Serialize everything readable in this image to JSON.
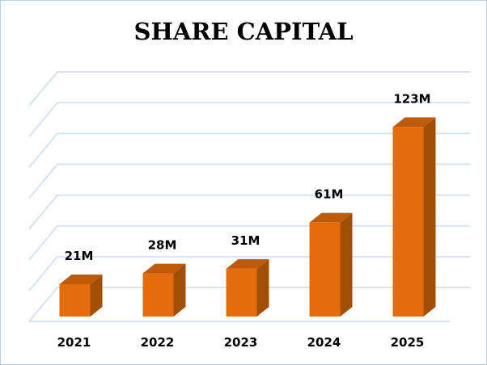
{
  "chart_data": {
    "type": "bar",
    "title": "SHARE CAPITAL",
    "categories": [
      "2021",
      "2022",
      "2023",
      "2024",
      "2025"
    ],
    "values": [
      21,
      28,
      31,
      61,
      123
    ],
    "data_labels": [
      "21M",
      "28M",
      "31M",
      "61M",
      "123M"
    ],
    "unit": "M",
    "ylim": [
      0,
      140
    ],
    "y_gridlines": 7,
    "grid": true,
    "legend": "none",
    "xlabel": "",
    "ylabel": "",
    "style": "3d-column",
    "colors": {
      "front": "#E46C0A",
      "side": "#A24E05",
      "top": "#BE5A09",
      "grid": "#d6e3f0"
    }
  }
}
